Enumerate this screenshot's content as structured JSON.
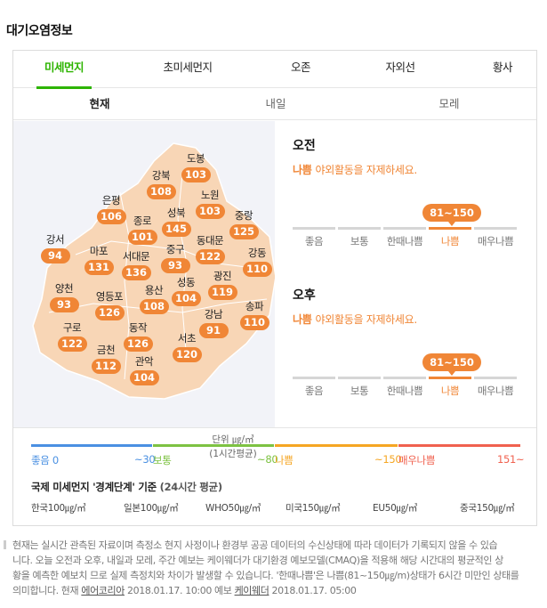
{
  "section_title": "대기오염정보",
  "main_tabs": [
    {
      "label": "미세먼지",
      "active": true
    },
    {
      "label": "초미세먼지",
      "active": false
    },
    {
      "label": "오존",
      "active": false
    },
    {
      "label": "자외선",
      "active": false
    },
    {
      "label": "황사",
      "active": false
    }
  ],
  "sub_tabs": [
    {
      "label": "현재",
      "active": true
    },
    {
      "label": "내일",
      "active": false
    },
    {
      "label": "모레",
      "active": false
    }
  ],
  "districts": [
    {
      "name": "도봉",
      "value": "103"
    },
    {
      "name": "강북",
      "value": "108"
    },
    {
      "name": "노원",
      "value": "103"
    },
    {
      "name": "은평",
      "value": "106"
    },
    {
      "name": "종로",
      "value": "101"
    },
    {
      "name": "성북",
      "value": "145"
    },
    {
      "name": "중랑",
      "value": "125"
    },
    {
      "name": "강서",
      "value": "94"
    },
    {
      "name": "마포",
      "value": "131"
    },
    {
      "name": "서대문",
      "value": "136"
    },
    {
      "name": "중구",
      "value": "93"
    },
    {
      "name": "동대문",
      "value": "122"
    },
    {
      "name": "강동",
      "value": "110"
    },
    {
      "name": "양천",
      "value": "93"
    },
    {
      "name": "영등포",
      "value": "126"
    },
    {
      "name": "용산",
      "value": "108"
    },
    {
      "name": "성동",
      "value": "104"
    },
    {
      "name": "광진",
      "value": "119"
    },
    {
      "name": "송파",
      "value": "110"
    },
    {
      "name": "구로",
      "value": "122"
    },
    {
      "name": "동작",
      "value": "126"
    },
    {
      "name": "강남",
      "value": "91"
    },
    {
      "name": "금천",
      "value": "112"
    },
    {
      "name": "서초",
      "value": "120"
    },
    {
      "name": "관악",
      "value": "104"
    }
  ],
  "unit": {
    "line1": "단위 ㎍/㎥",
    "line2": "(1시간평균)"
  },
  "forecast": [
    {
      "title": "오전",
      "level": "나쁨",
      "message": "야외활동을 자제하세요.",
      "range": "81~150",
      "active_index": 3
    },
    {
      "title": "오후",
      "level": "나쁨",
      "message": "야외활동을 자제하세요.",
      "range": "81~150",
      "active_index": 3
    }
  ],
  "scale_labels": [
    "좋음",
    "보통",
    "한때나쁨",
    "나쁨",
    "매우나쁨"
  ],
  "legend": {
    "colors": [
      "#4a90e2",
      "#7dc242",
      "#f5a623",
      "#f0614f"
    ],
    "labels": [
      {
        "text": "좋음 0",
        "color": "#4a90e2"
      },
      {
        "text": "~30",
        "color": "#4a90e2"
      },
      {
        "text": "보통",
        "color": "#7dc242"
      },
      {
        "text": "~80",
        "color": "#7dc242"
      },
      {
        "text": "나쁨",
        "color": "#f5a623"
      },
      {
        "text": "~150",
        "color": "#f5a623"
      },
      {
        "text": "매우나쁨",
        "color": "#f0614f"
      },
      {
        "text": "151~",
        "color": "#f0614f"
      }
    ]
  },
  "international": {
    "title": "국제 미세먼지 '경계단계' 기준",
    "subtitle": "(24시간 평균)",
    "items": [
      "한국100㎍/㎥",
      "일본100㎍/㎥",
      "WHO50㎍/㎥",
      "미국150㎍/㎥",
      "EU50㎍/㎥",
      "중국150㎍/㎥"
    ]
  },
  "notes": {
    "line1": "현재는 실시간 관측된 자료이며 측정소 현지 사정이나 환경부 공공 데이터의 수신상태에 따라 데이터가 기록되지 않을 수 있습",
    "line2": "니다. 오늘 오전과 오후, 내일과 모레, 주간 예보는 케이웨더가 대기환경 예보모델(CMAQ)을 적용해 해당 시간대의 평균적인 상",
    "line3": "황을 예측한 예보치 므로 실제 측정치와 차이가 발생할 수 있습니다. '한때나쁨'은 나쁨(81~150㎍/m)상태가 6시간 미만인 상태를",
    "line4_prefix": "의미합니다.  현재 ",
    "source1": "에어코리아",
    "date1": " 2018.01.17. 10:00 예보 ",
    "source2": "케이웨더",
    "date2": " 2018.01.17. 05:00"
  }
}
